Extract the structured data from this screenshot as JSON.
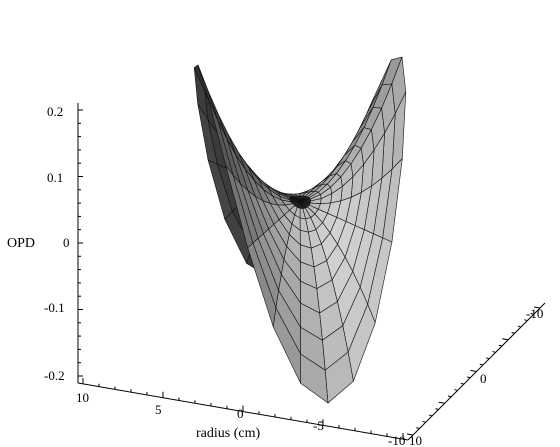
{
  "chart_data": {
    "type": "surface3d",
    "zlabel": "OPD",
    "xlabel": "radius (cm)",
    "x_ticks": [
      "10",
      "5",
      "0",
      "-5",
      "-10"
    ],
    "y_ticks": [
      "-10",
      "0",
      "10"
    ],
    "z_ticks": [
      "0.2",
      "0.1",
      "0",
      "-0.1",
      "-0.2"
    ],
    "x_range": [
      -10,
      10
    ],
    "y_range": [
      -10,
      10
    ],
    "z_range": [
      -0.2,
      0.2
    ],
    "surface": {
      "shape": "circular",
      "function": "z = 0.2 * (r/10)^2 * cos(2*theta)",
      "radius_max": 10,
      "z_amplitude": 0.2
    },
    "grid": false,
    "color": "#8a8a8a"
  }
}
